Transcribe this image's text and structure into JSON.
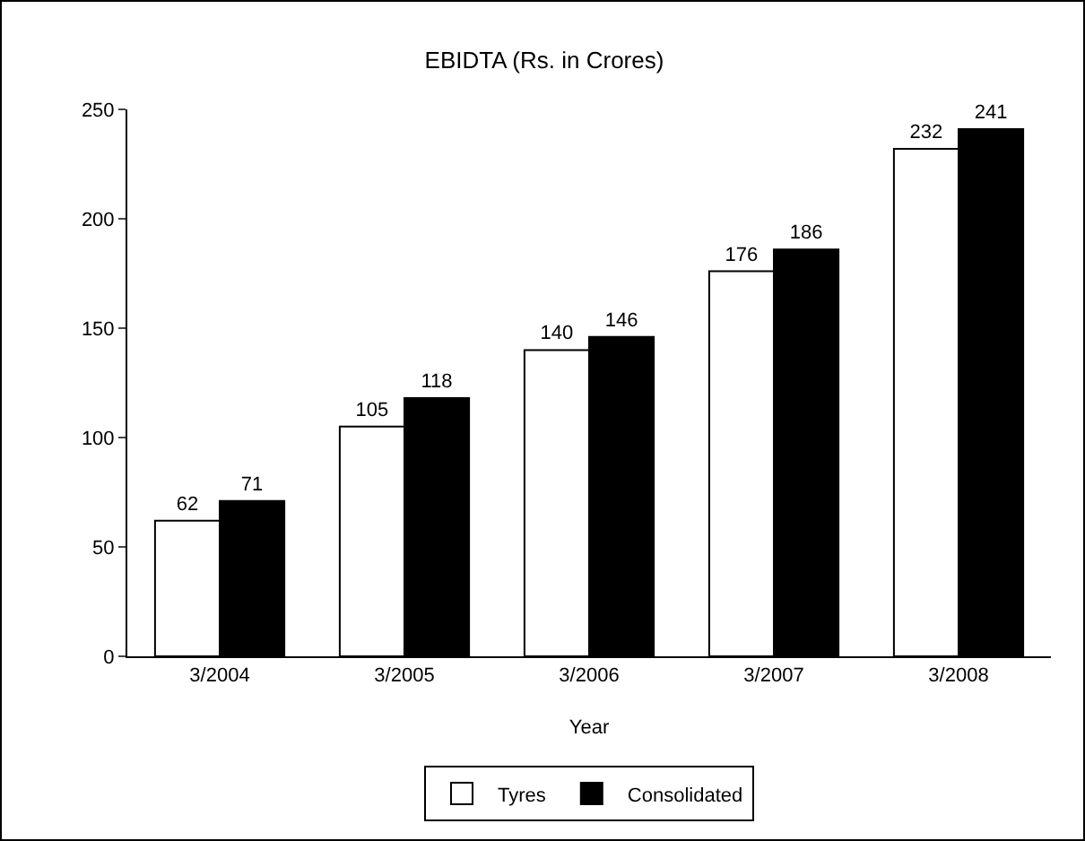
{
  "chart_data": {
    "type": "bar",
    "title": "EBIDTA (Rs. in Crores)",
    "xlabel": "Year",
    "categories": [
      "3/2004",
      "3/2005",
      "3/2006",
      "3/2007",
      "3/2008"
    ],
    "series": [
      {
        "name": "Tyres",
        "color": "#ffffff",
        "values": [
          62,
          105,
          140,
          176,
          232
        ]
      },
      {
        "name": "Consolidated",
        "color": "#000000",
        "values": [
          71,
          118,
          146,
          186,
          241
        ]
      }
    ],
    "ylim": [
      0,
      250
    ],
    "yticks": [
      0,
      50,
      100,
      150,
      200,
      250
    ],
    "grid": false,
    "legend": "bottom",
    "data_labels": true
  }
}
